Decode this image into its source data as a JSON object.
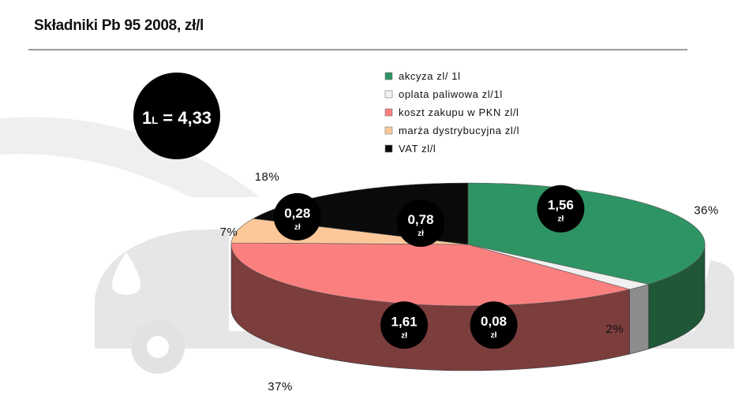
{
  "title": "Składniki Pb 95 2008, zł/l",
  "total_badge": {
    "prefix": "1",
    "sub": "L",
    "rest": " = 4,33"
  },
  "chart_data": {
    "type": "pie",
    "title": "Składniki Pb 95 2008, zł/l",
    "legend_position": "top-right",
    "slices": [
      {
        "label": "akcyza zl/ 1l",
        "value": 1.56,
        "value_label": "1,56",
        "unit": "zł",
        "percent_label": "36%",
        "color": "#2f9463"
      },
      {
        "label": "oplata paliwowa  zl/1l",
        "value": 0.08,
        "value_label": "0,08",
        "unit": "zł",
        "percent_label": "2%",
        "color": "#f0f0f0"
      },
      {
        "label": "koszt zakupu w PKN zl/l",
        "value": 1.61,
        "value_label": "1,61",
        "unit": "zł",
        "percent_label": "37%",
        "color": "#fa8080"
      },
      {
        "label": "marża dystrybucyjna zl/l",
        "value": 0.28,
        "value_label": "0,28",
        "unit": "zł",
        "percent_label": "7%",
        "color": "#fcc899"
      },
      {
        "label": "VAT zl/l",
        "value": 0.78,
        "value_label": "0,78",
        "unit": "zł",
        "percent_label": "18%",
        "color": "#0a0a0a"
      }
    ],
    "side_colors": [
      "#1f5737",
      "#8c8c8c",
      "#7c3d3d",
      "#c59a72",
      "#000000"
    ]
  }
}
